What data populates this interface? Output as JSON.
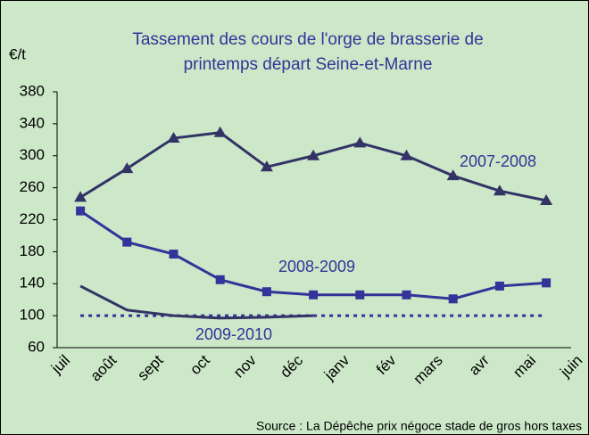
{
  "chart_data": {
    "type": "line",
    "title": [
      "Tassement des cours de l'orge de brasserie de",
      "printemps départ Seine-et-Marne"
    ],
    "y_label": "€/t",
    "source": "Source : La Dépêche prix négoce stade de gros hors taxes",
    "categories": [
      "juil",
      "août",
      "sept",
      "oct",
      "nov",
      "déc",
      "janv",
      "fév",
      "mars",
      "avr",
      "mai",
      "juin"
    ],
    "series": [
      {
        "name": "2007-2008",
        "color": "#333366",
        "marker": "triangle",
        "values": [
          248,
          284,
          322,
          329,
          286,
          300,
          316,
          300,
          275,
          256,
          244,
          null
        ]
      },
      {
        "name": "2008-2009",
        "color": "#333399",
        "marker": "square",
        "values": [
          231,
          192,
          177,
          145,
          130,
          126,
          126,
          126,
          121,
          137,
          141,
          null
        ]
      },
      {
        "name": "2009-2010",
        "color": "#333366",
        "marker": "none",
        "values": [
          137,
          107,
          100,
          97,
          98,
          100,
          null,
          null,
          null,
          null,
          null,
          null
        ]
      }
    ],
    "reference_line": {
      "value": 100,
      "color": "#333399"
    },
    "ylim": [
      60,
      380
    ],
    "yticks": [
      60,
      100,
      140,
      180,
      220,
      260,
      300,
      340,
      380
    ],
    "grid": false
  }
}
